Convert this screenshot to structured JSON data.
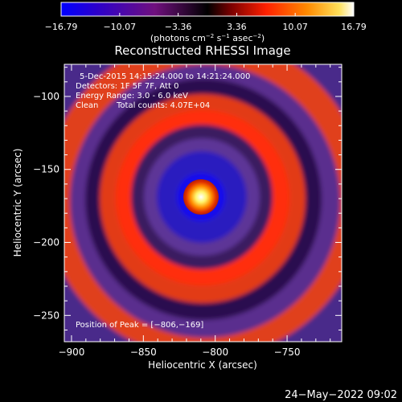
{
  "chart_data": {
    "type": "heatmap",
    "title": "Reconstructed RHESSI Image",
    "xlabel": "Heliocentric X (arcsec)",
    "ylabel": "Heliocentric Y (arcsec)",
    "xlim": [
      -905,
      -712
    ],
    "ylim": [
      -268,
      -78
    ],
    "x_ticks": [
      -900,
      -850,
      -800,
      -750
    ],
    "x_tick_labels": [
      "−900",
      "−850",
      "−800",
      "−750"
    ],
    "y_ticks": [
      -100,
      -150,
      -200,
      -250
    ],
    "y_tick_labels": [
      "−100",
      "−150",
      "−200",
      "−250"
    ],
    "colorbar": {
      "min": -16.79,
      "max": 16.79,
      "ticks": [
        -16.79,
        -10.07,
        -3.36,
        3.36,
        10.07,
        16.79
      ],
      "tick_labels": [
        "−16.79",
        "−10.07",
        "−3.36",
        "3.36",
        "10.07",
        "16.79"
      ],
      "unit_base": "(photons cm",
      "unit_sup1": "−2",
      "unit_mid": " s",
      "unit_sup2": "−1",
      "unit_mid2": " asec",
      "unit_sup3": "−2",
      "unit_end": ")"
    },
    "peak": [
      -806,
      -169
    ],
    "annotations": {
      "time_range": "5-Dec-2015 14:15:24.000 to 14:21:24.000",
      "detectors": "Detectors: 1F 5F 7F, Att 0",
      "energy": "Energy Range: 3.0 - 6.0 keV",
      "method": "Clean",
      "counts": "Total counts: 4.07E+04",
      "peak_label": "Position of Peak = [−806,−169]"
    },
    "grid": false,
    "colors": {
      "background": "#000000",
      "colormap": [
        "#0000ff",
        "#3a2a8c",
        "#60308a",
        "#ff2a00",
        "#ff8000",
        "#ffff80",
        "#ffffff"
      ]
    }
  },
  "footer": {
    "date": "24−May−2022 09:02"
  }
}
